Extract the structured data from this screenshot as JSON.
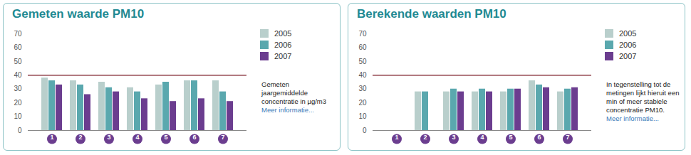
{
  "chart_data": [
    {
      "type": "bar",
      "title": "Gemeten waarde PM10",
      "categories": [
        "1",
        "2",
        "3",
        "4",
        "5",
        "6",
        "7"
      ],
      "series": [
        {
          "name": "2005",
          "color": "#b9cfcc",
          "values": [
            38,
            36,
            35,
            31,
            33,
            36,
            36
          ]
        },
        {
          "name": "2006",
          "color": "#5aa8ae",
          "values": [
            36,
            33,
            31,
            28,
            35,
            36,
            28
          ]
        },
        {
          "name": "2007",
          "color": "#6b3d8f",
          "values": [
            33,
            26,
            28,
            23,
            21,
            23,
            21
          ]
        }
      ],
      "ylim": [
        0,
        70
      ],
      "yticks": [
        0,
        10,
        20,
        30,
        40,
        50,
        60,
        70
      ],
      "reference_line": 40,
      "annotation": "Gemeten jaargemiddelde concentratie in µg/m3",
      "link": "Meer informatie...",
      "legend": "right",
      "grid": false
    },
    {
      "type": "bar",
      "title": "Berekende waarden PM10",
      "categories": [
        "1",
        "2",
        "3",
        "4",
        "5",
        "6",
        "7"
      ],
      "series": [
        {
          "name": "2005",
          "color": "#b9cfcc",
          "values": [
            null,
            28,
            28,
            28,
            28,
            36,
            28
          ]
        },
        {
          "name": "2006",
          "color": "#5aa8ae",
          "values": [
            null,
            28,
            30,
            30,
            30,
            33,
            30
          ]
        },
        {
          "name": "2007",
          "color": "#6b3d8f",
          "values": [
            null,
            null,
            28,
            28,
            30,
            31,
            31
          ]
        }
      ],
      "ylim": [
        0,
        70
      ],
      "yticks": [
        0,
        10,
        20,
        30,
        40,
        50,
        60,
        70
      ],
      "reference_line": 40,
      "annotation": "In tegenstelling tot de metingen lijkt hieruit een min of meer stabiele concentratie PM10.",
      "link": "Meer informatie...",
      "legend": "right",
      "grid": false
    }
  ]
}
